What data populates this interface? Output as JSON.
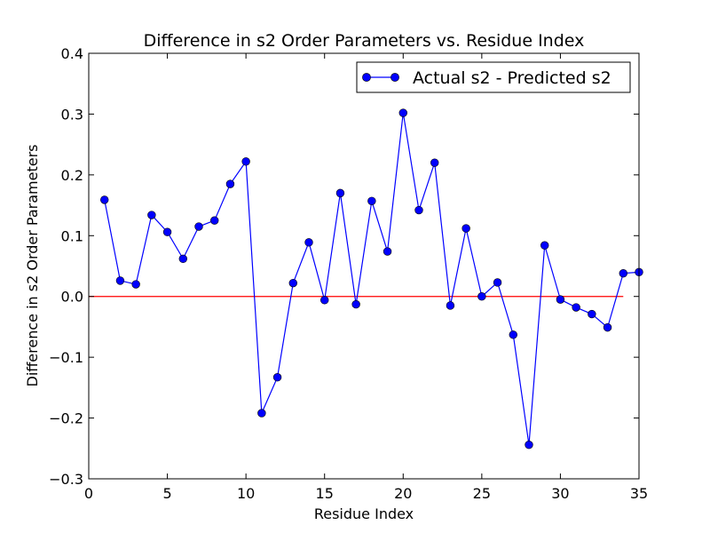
{
  "chart_data": {
    "type": "line",
    "title": "Difference in s2 Order Parameters vs. Residue Index",
    "xlabel": "Residue Index",
    "ylabel": "Difference in s2 Order Parameters",
    "xlim": [
      0,
      35
    ],
    "ylim": [
      -0.3,
      0.4
    ],
    "x_ticks": [
      0,
      5,
      10,
      15,
      20,
      25,
      30,
      35
    ],
    "y_ticks": [
      -0.3,
      -0.2,
      -0.1,
      0.0,
      0.1,
      0.2,
      0.3,
      0.4
    ],
    "x_tick_labels": [
      "0",
      "5",
      "10",
      "15",
      "20",
      "25",
      "30",
      "35"
    ],
    "y_tick_labels": [
      "−0.3",
      "−0.2",
      "−0.1",
      "0.0",
      "0.1",
      "0.2",
      "0.3",
      "0.4"
    ],
    "grid": false,
    "legend_position": "top-right",
    "series": [
      {
        "name": "Actual s2 - Predicted s2",
        "color": "#0000ff",
        "marker": "circle",
        "x": [
          1,
          2,
          3,
          4,
          5,
          6,
          7,
          8,
          9,
          10,
          11,
          12,
          13,
          14,
          15,
          16,
          17,
          18,
          19,
          20,
          21,
          22,
          23,
          24,
          25,
          26,
          27,
          28,
          29,
          30,
          31,
          32,
          33,
          34,
          35
        ],
        "y": [
          0.159,
          0.026,
          0.02,
          0.134,
          0.106,
          0.062,
          0.115,
          0.125,
          0.185,
          0.222,
          -0.192,
          -0.133,
          0.022,
          0.089,
          -0.006,
          0.17,
          -0.013,
          0.157,
          0.074,
          0.302,
          0.142,
          0.22,
          -0.015,
          0.112,
          0.0,
          0.023,
          -0.063,
          -0.244,
          0.084,
          -0.005,
          -0.018,
          -0.029,
          -0.051,
          0.038,
          0.04
        ]
      }
    ],
    "reference_line": {
      "color": "#ff0000",
      "x": [
        0,
        34
      ],
      "y": [
        0,
        0
      ]
    }
  }
}
